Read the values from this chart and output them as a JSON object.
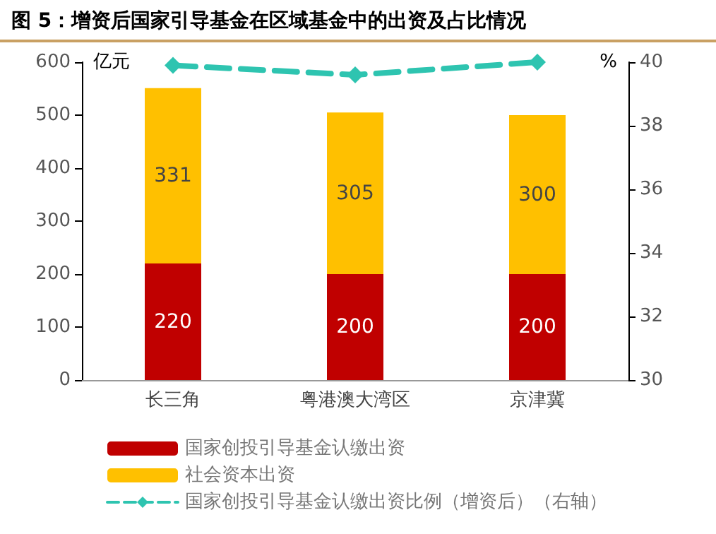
{
  "chart_data": {
    "type": "bar",
    "title": "图 5：增资后国家引导基金在区域基金中的出资及占比情况",
    "categories": [
      "长三角",
      "粤港澳大湾区",
      "京津冀"
    ],
    "ylabel": "亿元",
    "y2label": "%",
    "stacked": true,
    "legend": "bottom",
    "grid": false,
    "ylim": [
      0,
      600
    ],
    "yticks": [
      0,
      100,
      200,
      300,
      400,
      500,
      600
    ],
    "y2lim": [
      30,
      40
    ],
    "y2ticks": [
      30,
      32,
      34,
      36,
      38,
      40
    ],
    "series": [
      {
        "name": "国家创投引导基金认缴出资",
        "color": "#c00000",
        "values": [
          220,
          200,
          200
        ],
        "value_labels": [
          "220",
          "200",
          "200"
        ]
      },
      {
        "name": "社会资本出资",
        "color": "#ffc000",
        "values": [
          331,
          305,
          300
        ],
        "value_labels": [
          "331",
          "305",
          "300"
        ]
      },
      {
        "name": "国家创投引导基金认缴出资比例（增资后）（右轴）",
        "type": "line",
        "axis": "y2",
        "color": "#2ec4b0",
        "marker": "diamond",
        "line_style": "dashed",
        "values": [
          39.9,
          39.6,
          40.0
        ]
      }
    ]
  }
}
